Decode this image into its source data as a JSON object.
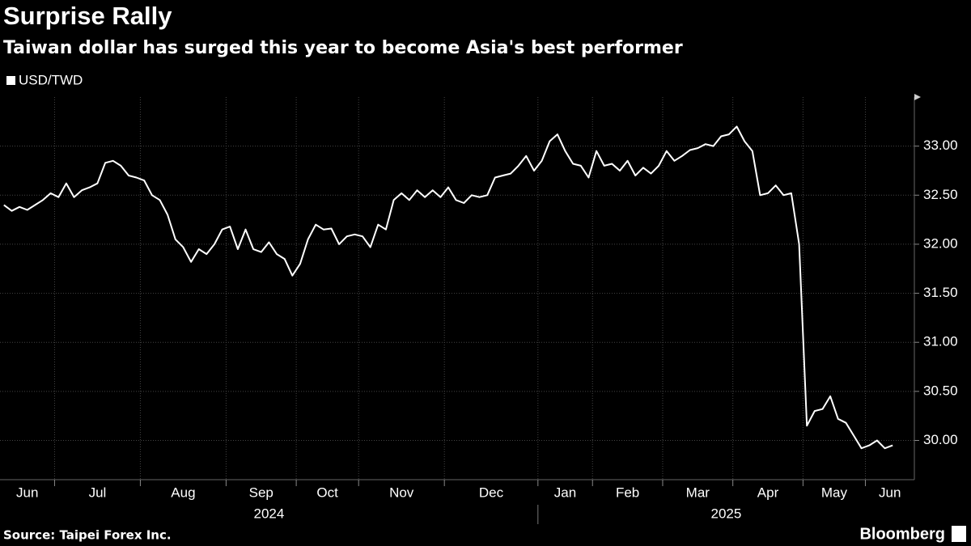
{
  "chart_data": {
    "type": "line",
    "title": "Surprise Rally",
    "subtitle": "Taiwan dollar has surged this year to become Asia's best performer",
    "source": "Source: Taipei Forex Inc.",
    "brand": "Bloomberg",
    "series_name": "USD/TWD",
    "color": "#ffffff",
    "grid": true,
    "ylim": [
      29.6,
      33.5
    ],
    "yticks": [
      {
        "value": 30,
        "label": "30.00"
      },
      {
        "value": 30.5,
        "label": "30.50"
      },
      {
        "value": 31,
        "label": "31.00"
      },
      {
        "value": 31.5,
        "label": "31.50"
      },
      {
        "value": 32,
        "label": "32.00"
      },
      {
        "value": 32.5,
        "label": "32.50"
      },
      {
        "value": 33,
        "label": "33.00"
      }
    ],
    "years": [
      {
        "label": "2024",
        "months": [
          {
            "label": "Jun",
            "values": [
              32.4,
              32.34,
              32.38,
              32.35,
              32.4,
              32.45,
              32.52
            ]
          },
          {
            "label": "Jul",
            "values": [
              32.48,
              32.62,
              32.48,
              32.55,
              32.58,
              32.62,
              32.83,
              32.85,
              32.8,
              32.7,
              32.68
            ]
          },
          {
            "label": "Aug",
            "values": [
              32.65,
              32.5,
              32.45,
              32.3,
              32.05,
              31.97,
              31.82,
              31.95,
              31.9,
              32.0,
              32.15
            ]
          },
          {
            "label": "Sep",
            "values": [
              32.18,
              31.95,
              32.15,
              31.95,
              31.92,
              32.02,
              31.9,
              31.85,
              31.68
            ]
          },
          {
            "label": "Oct",
            "values": [
              31.8,
              32.05,
              32.2,
              32.15,
              32.16,
              32.0,
              32.08,
              32.1
            ]
          },
          {
            "label": "Nov",
            "values": [
              32.08,
              31.97,
              32.2,
              32.15,
              32.45,
              32.52,
              32.45,
              32.55,
              32.48,
              32.55,
              32.48
            ]
          },
          {
            "label": "Dec",
            "values": [
              32.58,
              32.45,
              32.42,
              32.5,
              32.48,
              32.5,
              32.68,
              32.7,
              32.72,
              32.8,
              32.9,
              32.75
            ]
          }
        ]
      },
      {
        "label": "2025",
        "months": [
          {
            "label": "Jan",
            "values": [
              32.85,
              33.05,
              33.12,
              32.95,
              32.82,
              32.8,
              32.68
            ]
          },
          {
            "label": "Feb",
            "values": [
              32.95,
              32.8,
              32.82,
              32.75,
              32.85,
              32.7,
              32.78,
              32.72,
              32.8
            ]
          },
          {
            "label": "Mar",
            "values": [
              32.95,
              32.85,
              32.9,
              32.96,
              32.98,
              33.02,
              33.0,
              33.1,
              33.12
            ]
          },
          {
            "label": "Apr",
            "values": [
              33.2,
              33.05,
              32.95,
              32.5,
              32.52,
              32.6,
              32.5,
              32.52,
              32.0
            ]
          },
          {
            "label": "May",
            "values": [
              30.15,
              30.3,
              30.32,
              30.45,
              30.22,
              30.18,
              30.05,
              29.92
            ]
          },
          {
            "label": "Jun",
            "values": [
              29.95,
              30.0,
              29.92,
              29.95
            ]
          }
        ]
      }
    ]
  }
}
